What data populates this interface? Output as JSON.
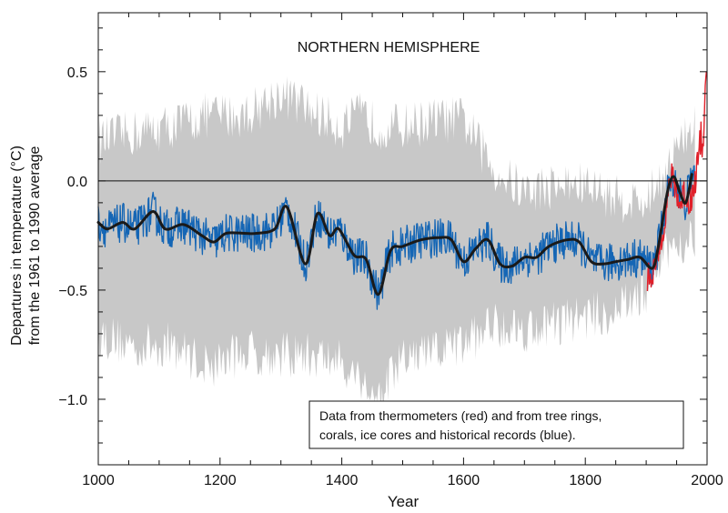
{
  "chart_data": {
    "type": "line",
    "title": "NORTHERN HEMISPHERE",
    "xlabel": "Year",
    "ylabel_line1": "Departures in temperature (°C)",
    "ylabel_line2": "from the 1961 to 1990 average",
    "xlim": [
      1000,
      2000
    ],
    "ylim": [
      -1.3,
      0.77
    ],
    "x_ticks": [
      1000,
      1200,
      1400,
      1600,
      1800,
      2000
    ],
    "x_tick_labels": [
      "1000",
      "1200",
      "1400",
      "1600",
      "1800",
      "2000"
    ],
    "y_ticks": [
      0.5,
      0.0,
      -0.5,
      -1.0
    ],
    "y_tick_labels": [
      "0.5",
      "0.0",
      "−0.5",
      "−1.0"
    ],
    "reference_line_y": 0.0,
    "legend_text_line1": "Data from thermometers (red) and from tree rings,",
    "legend_text_line2": "corals, ice cores and historical records (blue).",
    "colors": {
      "proxy": "#1566b5",
      "instrumental": "#e0202a",
      "smoothed": "#1a1a1a",
      "uncertainty": "#c8c8c8"
    },
    "series": [
      {
        "name": "proxy",
        "style": "noisy-line",
        "noise_amplitude": 0.09,
        "x": [
          1000,
          1600,
          1980
        ],
        "y": [
          -0.25,
          -0.33,
          -0.15
        ]
      },
      {
        "name": "instrumental",
        "style": "line",
        "x": [
          1902,
          1910,
          1918,
          1925,
          1932,
          1940,
          1948,
          1955,
          1962,
          1970,
          1978,
          1985,
          1990,
          1993,
          1995,
          1997,
          1999
        ],
        "y": [
          -0.45,
          -0.42,
          -0.38,
          -0.25,
          -0.15,
          0.02,
          -0.02,
          -0.12,
          -0.05,
          -0.1,
          -0.05,
          0.1,
          0.2,
          0.15,
          0.3,
          0.4,
          0.55
        ]
      },
      {
        "name": "smoothed",
        "style": "smooth-line",
        "x": [
          1000,
          1015,
          1040,
          1060,
          1090,
          1110,
          1140,
          1170,
          1190,
          1210,
          1240,
          1260,
          1290,
          1310,
          1340,
          1360,
          1380,
          1395,
          1420,
          1440,
          1460,
          1480,
          1500,
          1530,
          1560,
          1580,
          1600,
          1620,
          1640,
          1660,
          1680,
          1700,
          1720,
          1740,
          1770,
          1790,
          1810,
          1830,
          1850,
          1870,
          1890,
          1910,
          1920,
          1935,
          1945,
          1955,
          1965,
          1975
        ],
        "y": [
          -0.19,
          -0.22,
          -0.19,
          -0.22,
          -0.14,
          -0.22,
          -0.2,
          -0.25,
          -0.28,
          -0.24,
          -0.24,
          -0.24,
          -0.22,
          -0.12,
          -0.38,
          -0.15,
          -0.25,
          -0.22,
          -0.34,
          -0.36,
          -0.52,
          -0.32,
          -0.3,
          -0.27,
          -0.26,
          -0.27,
          -0.37,
          -0.31,
          -0.27,
          -0.38,
          -0.39,
          -0.35,
          -0.35,
          -0.3,
          -0.27,
          -0.28,
          -0.37,
          -0.38,
          -0.37,
          -0.36,
          -0.35,
          -0.4,
          -0.3,
          -0.05,
          0.02,
          -0.05,
          -0.1,
          0.03
        ]
      }
    ],
    "uncertainty_band": {
      "name": "uncertainty",
      "x": [
        1000,
        1060,
        1120,
        1180,
        1240,
        1300,
        1350,
        1400,
        1430,
        1460,
        1500,
        1560,
        1600,
        1650,
        1700,
        1750,
        1800,
        1850,
        1900,
        1940,
        1980
      ],
      "lower": [
        -0.7,
        -0.76,
        -0.75,
        -0.85,
        -0.78,
        -0.8,
        -0.8,
        -0.83,
        -0.9,
        -1.0,
        -0.82,
        -0.78,
        -0.75,
        -0.65,
        -0.68,
        -0.65,
        -0.62,
        -0.6,
        -0.5,
        -0.3,
        -0.25
      ],
      "upper": [
        0.18,
        0.22,
        0.25,
        0.3,
        0.3,
        0.4,
        0.32,
        0.25,
        0.3,
        0.25,
        0.25,
        0.28,
        0.28,
        0.05,
        -0.05,
        -0.02,
        -0.02,
        -0.08,
        -0.1,
        0.1,
        0.25
      ]
    }
  }
}
